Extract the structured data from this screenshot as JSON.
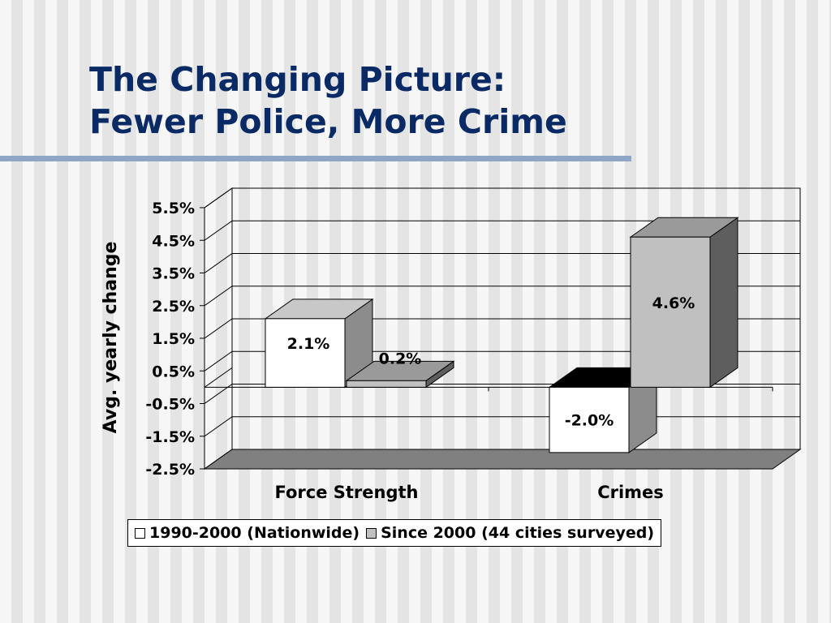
{
  "slide": {
    "title_line1": "The Changing Picture:",
    "title_line2": "Fewer Police, More Crime"
  },
  "colors": {
    "title": "#0a2a66",
    "rule": "#8fa6c6",
    "series1_front": "#ffffff",
    "series1_top": "#c8c8c8",
    "series1_side": "#8c8c8c",
    "series2_front": "#c0c0c0",
    "series2_top": "#9a9a9a",
    "series2_side": "#5e5e5e",
    "floor": "#808080"
  },
  "chart_data": {
    "type": "bar",
    "style": "3d-clustered-column",
    "categories": [
      "Force Strength",
      "Crimes"
    ],
    "series": [
      {
        "name": "1990-2000 (Nationwide)",
        "values": [
          2.1,
          -2.0
        ],
        "data_labels": [
          "2.1%",
          "-2.0%"
        ]
      },
      {
        "name": "Since 2000 (44 cities surveyed)",
        "values": [
          0.2,
          4.6
        ],
        "data_labels": [
          "0.2%",
          "4.6%"
        ]
      }
    ],
    "ylabel": "Avg. yearly change",
    "xlabel": "",
    "ylim": [
      -2.5,
      5.5
    ],
    "y_ticks": [
      "5.5%",
      "4.5%",
      "3.5%",
      "2.5%",
      "1.5%",
      "0.5%",
      "-0.5%",
      "-1.5%",
      "-2.5%"
    ],
    "y_tick_values": [
      5.5,
      4.5,
      3.5,
      2.5,
      1.5,
      0.5,
      -0.5,
      -1.5,
      -2.5
    ],
    "grid": true,
    "legend_position": "bottom"
  }
}
